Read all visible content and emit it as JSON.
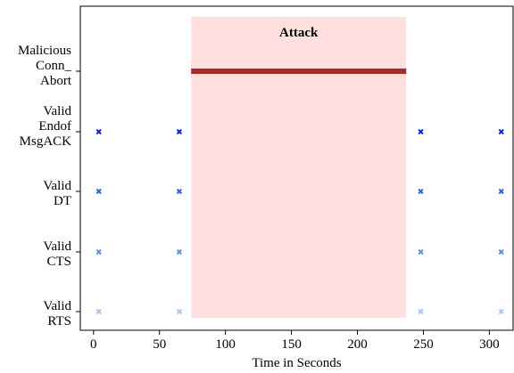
{
  "chart_data": {
    "type": "scatter",
    "title": "",
    "xlabel": "Time in Seconds",
    "ylabel": "",
    "xlim": [
      -10,
      318
    ],
    "xticks": [
      0,
      50,
      100,
      150,
      200,
      250,
      300
    ],
    "grid": false,
    "legend": "none",
    "categories": [
      {
        "key": "rts",
        "lines": [
          "Valid",
          "RTS"
        ]
      },
      {
        "key": "cts",
        "lines": [
          "Valid",
          "CTS"
        ]
      },
      {
        "key": "dt",
        "lines": [
          "Valid",
          "DT"
        ]
      },
      {
        "key": "eom",
        "lines": [
          "Valid",
          "Endof",
          "MsgACK"
        ]
      },
      {
        "key": "abort",
        "lines": [
          "Malicious",
          "Conn_",
          "Abort"
        ]
      }
    ],
    "series": [
      {
        "category": "rts",
        "color": "#a9c4ef",
        "x": [
          4,
          65,
          248,
          309
        ]
      },
      {
        "category": "cts",
        "color": "#5b8fe0",
        "x": [
          4,
          65,
          248,
          309
        ]
      },
      {
        "category": "dt",
        "color": "#2f5fd6",
        "x": [
          4,
          65,
          248,
          309
        ]
      },
      {
        "category": "eom",
        "color": "#0a1fe0",
        "x": [
          4,
          65,
          248,
          309
        ]
      }
    ],
    "abort_line": {
      "category": "abort",
      "x_start": 74,
      "x_end": 237,
      "color": "#a52a2a"
    },
    "attack_span": {
      "x_start": 74,
      "x_end": 237,
      "label": "Attack",
      "color": "#ffe0de"
    }
  }
}
